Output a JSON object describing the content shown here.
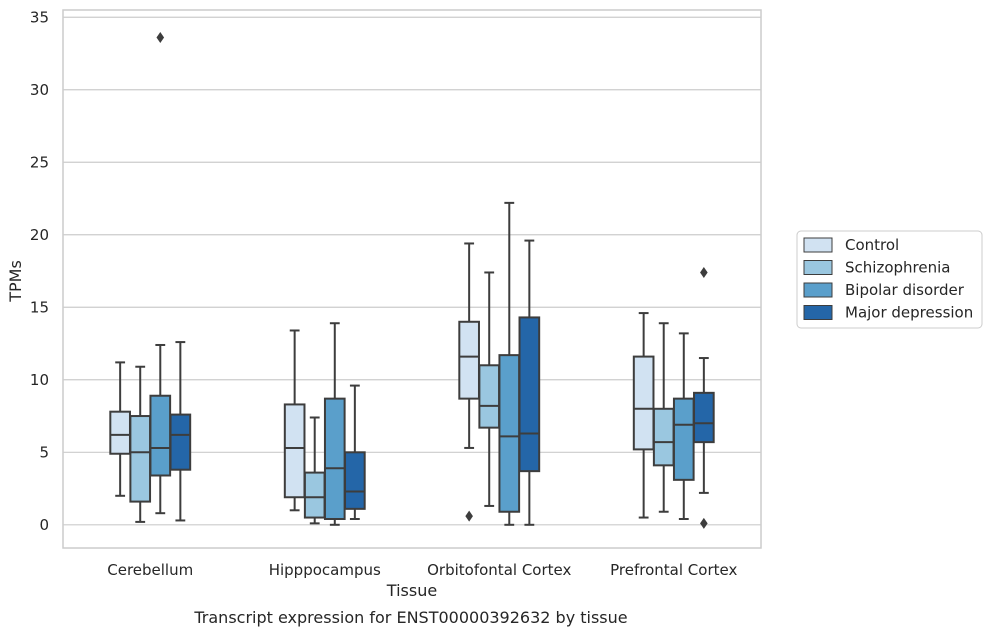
{
  "chart_data": {
    "type": "box",
    "title": "",
    "caption": "Transcript expression for ENST00000392632 by tissue",
    "xlabel": "Tissue",
    "ylabel": "TPMs",
    "ylim": [
      -1.6,
      35.5
    ],
    "yticks": [
      0,
      5,
      10,
      15,
      20,
      25,
      30,
      35
    ],
    "grid": "horizontal",
    "legend_position": "right",
    "categories": [
      "Cerebellum",
      "Hipppocampus",
      "Orbitofontal Cortex",
      "Prefrontal Cortex"
    ],
    "series": [
      {
        "name": "Control",
        "color": "#d1e2f2",
        "boxes": [
          {
            "whislo": 2.0,
            "q1": 4.9,
            "med": 6.2,
            "q3": 7.8,
            "whishi": 11.2,
            "fliers": []
          },
          {
            "whislo": 1.0,
            "q1": 1.9,
            "med": 5.3,
            "q3": 8.3,
            "whishi": 13.4,
            "fliers": []
          },
          {
            "whislo": 5.3,
            "q1": 8.7,
            "med": 11.6,
            "q3": 14.0,
            "whishi": 19.4,
            "fliers": [
              0.6
            ]
          },
          {
            "whislo": 0.5,
            "q1": 5.2,
            "med": 8.0,
            "q3": 11.6,
            "whishi": 14.6,
            "fliers": []
          }
        ]
      },
      {
        "name": "Schizophrenia",
        "color": "#9ac7e0",
        "boxes": [
          {
            "whislo": 0.2,
            "q1": 1.6,
            "med": 5.0,
            "q3": 7.5,
            "whishi": 10.9,
            "fliers": []
          },
          {
            "whislo": 0.1,
            "q1": 0.5,
            "med": 1.9,
            "q3": 3.6,
            "whishi": 7.4,
            "fliers": []
          },
          {
            "whislo": 1.3,
            "q1": 6.7,
            "med": 8.2,
            "q3": 11.0,
            "whishi": 17.4,
            "fliers": []
          },
          {
            "whislo": 0.9,
            "q1": 4.1,
            "med": 5.7,
            "q3": 8.0,
            "whishi": 13.9,
            "fliers": []
          }
        ]
      },
      {
        "name": "Bipolar disorder",
        "color": "#5a9fcb",
        "boxes": [
          {
            "whislo": 0.8,
            "q1": 3.4,
            "med": 5.3,
            "q3": 8.9,
            "whishi": 12.4,
            "fliers": [
              33.6
            ]
          },
          {
            "whislo": 0.0,
            "q1": 0.4,
            "med": 3.9,
            "q3": 8.7,
            "whishi": 13.9,
            "fliers": []
          },
          {
            "whislo": 0.0,
            "q1": 0.9,
            "med": 6.1,
            "q3": 11.7,
            "whishi": 22.2,
            "fliers": []
          },
          {
            "whislo": 0.4,
            "q1": 3.1,
            "med": 6.9,
            "q3": 8.7,
            "whishi": 13.2,
            "fliers": []
          }
        ]
      },
      {
        "name": "Major depression",
        "color": "#2466a8",
        "boxes": [
          {
            "whislo": 0.3,
            "q1": 3.8,
            "med": 6.2,
            "q3": 7.6,
            "whishi": 12.6,
            "fliers": []
          },
          {
            "whislo": 0.4,
            "q1": 1.1,
            "med": 2.3,
            "q3": 5.0,
            "whishi": 9.6,
            "fliers": []
          },
          {
            "whislo": 0.0,
            "q1": 3.7,
            "med": 6.3,
            "q3": 14.3,
            "whishi": 19.6,
            "fliers": []
          },
          {
            "whislo": 2.2,
            "q1": 5.7,
            "med": 7.0,
            "q3": 9.1,
            "whishi": 11.5,
            "fliers": [
              17.4,
              0.1
            ]
          }
        ]
      }
    ]
  }
}
